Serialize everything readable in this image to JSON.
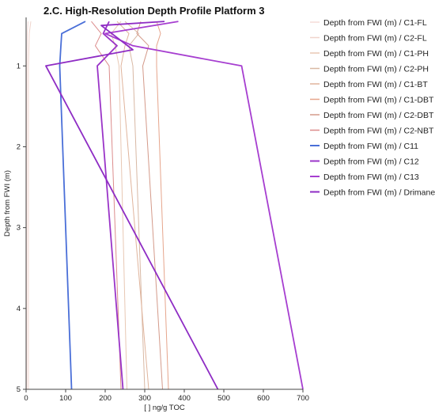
{
  "chart_data": {
    "type": "line",
    "title": "2.C. High-Resolution Depth Profile Platform 3",
    "xlabel": "[ ] ng/g TOC",
    "ylabel": "Depth from FWI (m)",
    "xlim": [
      0,
      700
    ],
    "ylim": [
      0.4,
      5
    ],
    "y_inverted": true,
    "xticks": [
      0,
      100,
      200,
      300,
      400,
      500,
      600,
      700
    ],
    "yticks": [
      1,
      2,
      3,
      4,
      5
    ],
    "grid": false,
    "legend_position": "right",
    "series": [
      {
        "name": "Depth from FWI (m) / C1-FL",
        "color": "#f5dcd8",
        "width": 1,
        "points": [
          [
            5,
            0.45
          ],
          [
            3,
            0.6
          ],
          [
            2,
            1.0
          ],
          [
            2,
            5.0
          ]
        ]
      },
      {
        "name": "Depth from FWI (m) / C2-FL",
        "color": "#f0d4cc",
        "width": 1,
        "points": [
          [
            12,
            0.45
          ],
          [
            8,
            0.6
          ],
          [
            6,
            1.0
          ],
          [
            6,
            5.0
          ]
        ]
      },
      {
        "name": "Depth from FWI (m) / C1-PH",
        "color": "#e8c8b4",
        "width": 1,
        "points": [
          [
            240,
            0.45
          ],
          [
            215,
            0.6
          ],
          [
            225,
            0.75
          ],
          [
            235,
            1.0
          ],
          [
            255,
            5.0
          ]
        ]
      },
      {
        "name": "Depth from FWI (m) / C2-PH",
        "color": "#d8b8a4",
        "width": 1,
        "points": [
          [
            250,
            0.45
          ],
          [
            285,
            0.6
          ],
          [
            260,
            0.75
          ],
          [
            270,
            1.0
          ],
          [
            300,
            5.0
          ]
        ]
      },
      {
        "name": "Depth from FWI (m) / C1-BT",
        "color": "#e0b49c",
        "width": 1,
        "points": [
          [
            230,
            0.45
          ],
          [
            260,
            0.6
          ],
          [
            250,
            0.75
          ],
          [
            240,
            1.0
          ],
          [
            310,
            5.0
          ]
        ]
      },
      {
        "name": "Depth from FWI (m) / C1-DBT",
        "color": "#e6a58c",
        "width": 1,
        "points": [
          [
            330,
            0.45
          ],
          [
            340,
            0.6
          ],
          [
            330,
            0.75
          ],
          [
            330,
            1.0
          ],
          [
            360,
            5.0
          ]
        ]
      },
      {
        "name": "Depth from FWI (m) / C2-DBT",
        "color": "#d49a8a",
        "width": 1,
        "points": [
          [
            290,
            0.45
          ],
          [
            280,
            0.6
          ],
          [
            310,
            0.75
          ],
          [
            295,
            1.0
          ],
          [
            345,
            5.0
          ]
        ]
      },
      {
        "name": "Depth from FWI (m) / C2-NBT",
        "color": "#dc8c8c",
        "width": 1,
        "points": [
          [
            165,
            0.45
          ],
          [
            190,
            0.6
          ],
          [
            175,
            0.75
          ],
          [
            210,
            1.0
          ],
          [
            240,
            5.0
          ]
        ]
      },
      {
        "name": "Depth from FWI (m) / C11",
        "color": "#4a6fd8",
        "width": 1.8,
        "points": [
          [
            150,
            0.45
          ],
          [
            90,
            0.6
          ],
          [
            88,
            0.75
          ],
          [
            85,
            1.0
          ],
          [
            115,
            5.0
          ]
        ]
      },
      {
        "name": "Depth from FWI (m) / C12",
        "color": "#9a34c8",
        "width": 1.8,
        "points": [
          [
            210,
            0.45
          ],
          [
            195,
            0.6
          ],
          [
            230,
            0.75
          ],
          [
            180,
            1.0
          ],
          [
            245,
            5.0
          ]
        ]
      },
      {
        "name": "Depth from FWI (m) / C13",
        "color": "#a63ed0",
        "width": 1.8,
        "points": [
          [
            385,
            0.45
          ],
          [
            200,
            0.6
          ],
          [
            270,
            0.75
          ],
          [
            545,
            1.0
          ],
          [
            700,
            5.0
          ]
        ]
      },
      {
        "name": "Depth from FWI (m) / Drimane",
        "color": "#8e2cc4",
        "width": 1.8,
        "points": [
          [
            350,
            0.45
          ],
          [
            190,
            0.5
          ],
          [
            270,
            0.8
          ],
          [
            50,
            1.0
          ],
          [
            485,
            5.0
          ]
        ]
      }
    ]
  }
}
